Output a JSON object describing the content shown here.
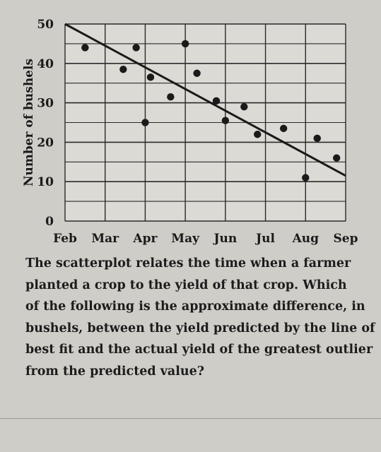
{
  "question": {
    "lines": [
      "The scatterplot relates the time when a farmer",
      "planted a crop to the yield of that crop. Which",
      "of the following is the approximate difference, in",
      "bushels, between the yield predicted by the line of",
      "best fit and the actual yield of the greatest outlier",
      "from the predicted value?"
    ]
  },
  "chart_data": {
    "type": "scatter",
    "title": "",
    "xlabel": "",
    "ylabel": "Number of bushels",
    "x_tick_labels": [
      "Feb",
      "Mar",
      "Apr",
      "May",
      "Jun",
      "Jul",
      "Aug",
      "Sep"
    ],
    "x_range": [
      "Feb",
      "Sep"
    ],
    "y_ticks": [
      0,
      10,
      20,
      30,
      40,
      50
    ],
    "ylim": [
      0,
      50
    ],
    "grid": true,
    "points": [
      {
        "x": "Feb 15",
        "y": 44
      },
      {
        "x": "Mar 15",
        "y": 38.5
      },
      {
        "x": "Mar 25",
        "y": 44
      },
      {
        "x": "Apr 1",
        "y": 25
      },
      {
        "x": "Apr 5",
        "y": 36.5
      },
      {
        "x": "Apr 20",
        "y": 31.5
      },
      {
        "x": "May 1",
        "y": 45
      },
      {
        "x": "May 10",
        "y": 37.5
      },
      {
        "x": "May 25",
        "y": 30.5
      },
      {
        "x": "Jun 1",
        "y": 25.5
      },
      {
        "x": "Jun 15",
        "y": 29
      },
      {
        "x": "Jun 25",
        "y": 22
      },
      {
        "x": "Jul 15",
        "y": 23.5
      },
      {
        "x": "Aug 1",
        "y": 11
      },
      {
        "x": "Aug 10",
        "y": 21
      },
      {
        "x": "Aug 25",
        "y": 16
      }
    ],
    "line_of_best_fit": [
      {
        "x": "Feb 1",
        "y": 50
      },
      {
        "x": "Sep 1",
        "y": 11.5
      }
    ],
    "colors": {
      "points": "#1a1a1a",
      "line": "#1a1a1a",
      "grid": "#2a2a2a",
      "background": "#dcdad5"
    }
  }
}
